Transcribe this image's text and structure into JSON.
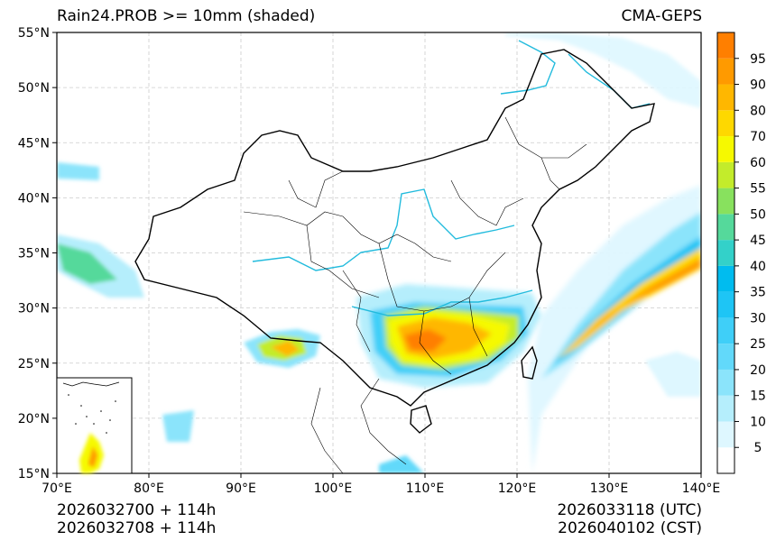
{
  "header": {
    "title": "Rain24.PROB >= 10mm (shaded)",
    "model": "CMA-GEPS"
  },
  "footer": {
    "init_utc": "2026032700 + 114h",
    "init_cst": "2026032708 + 114h",
    "valid_utc": "2026033118 (UTC)",
    "valid_cst": "2026040102 (CST)"
  },
  "map": {
    "lon_range": [
      70,
      140
    ],
    "lat_range": [
      15,
      55
    ],
    "lon_ticks": [
      "70°E",
      "80°E",
      "90°E",
      "100°E",
      "110°E",
      "120°E",
      "130°E",
      "140°E"
    ],
    "lat_ticks": [
      "15°N",
      "20°N",
      "25°N",
      "30°N",
      "35°N",
      "40°N",
      "45°N",
      "50°N",
      "55°N"
    ]
  },
  "colorbar": {
    "levels": [
      "5",
      "10",
      "15",
      "20",
      "25",
      "30",
      "35",
      "40",
      "45",
      "50",
      "55",
      "60",
      "70",
      "80",
      "90",
      "95"
    ],
    "colors": [
      "#ffffff",
      "#def7ff",
      "#b5eefc",
      "#8be4fb",
      "#62d9fa",
      "#3fcff8",
      "#1ec5f5",
      "#00bcef",
      "#33d1c9",
      "#55d99b",
      "#88e15e",
      "#c3ec2b",
      "#f6f900",
      "#fed800",
      "#ffb700",
      "#ff9a00",
      "#ff7f00"
    ]
  },
  "colors": {
    "rivers": "#22bbdd",
    "borders": "#000000",
    "grid": "#cccccc"
  }
}
